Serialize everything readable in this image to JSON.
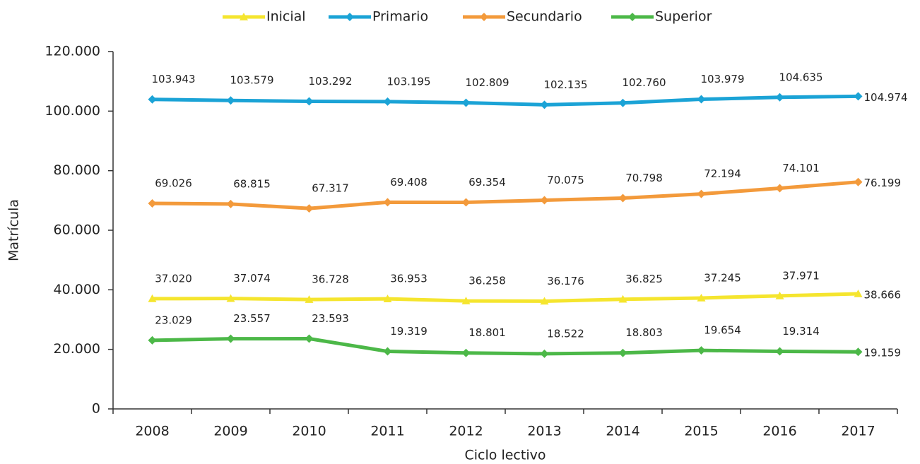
{
  "chart_data": {
    "type": "line",
    "x_label": "Ciclo lectivo",
    "y_label": "Matrícula",
    "categories": [
      "2008",
      "2009",
      "2010",
      "2011",
      "2012",
      "2013",
      "2014",
      "2015",
      "2016",
      "2017"
    ],
    "ylim": [
      0,
      120000
    ],
    "yticks": [
      0,
      {
        "value": 20000,
        "label": "20.000"
      },
      {
        "value": 40000,
        "label": "40.000"
      },
      {
        "value": 60000,
        "label": "60.000"
      },
      {
        "value": 80000,
        "label": "80.000"
      },
      {
        "value": 100000,
        "label": "100.000"
      },
      {
        "value": 120000,
        "label": "120.000"
      }
    ],
    "legend": "top",
    "series": [
      {
        "name": "Inicial",
        "color": "#f5e52e",
        "marker": "triangle",
        "values": [
          37020,
          37074,
          36728,
          36953,
          36258,
          36176,
          36825,
          37245,
          37971,
          38666
        ],
        "value_labels": [
          "37.020",
          "37.074",
          "36.728",
          "36.953",
          "36.258",
          "36.176",
          "36.825",
          "37.245",
          "37.971",
          "38.666"
        ]
      },
      {
        "name": "Primario",
        "color": "#1ba3d6",
        "marker": "diamond",
        "values": [
          103943,
          103579,
          103292,
          103195,
          102809,
          102135,
          102760,
          103979,
          104635,
          104974
        ],
        "value_labels": [
          "103.943",
          "103.579",
          "103.292",
          "103.195",
          "102.809",
          "102.135",
          "102.760",
          "103.979",
          "104.635",
          "104.974"
        ]
      },
      {
        "name": "Secundario",
        "color": "#f39a3b",
        "marker": "diamond",
        "values": [
          69026,
          68815,
          67317,
          69408,
          69354,
          70075,
          70798,
          72194,
          74101,
          76199
        ],
        "value_labels": [
          "69.026",
          "68.815",
          "67.317",
          "69.408",
          "69.354",
          "70.075",
          "70.798",
          "72.194",
          "74.101",
          "76.199"
        ]
      },
      {
        "name": "Superior",
        "color": "#4cb848",
        "marker": "diamond",
        "values": [
          23029,
          23557,
          23593,
          19319,
          18801,
          18522,
          18803,
          19654,
          19314,
          19159
        ],
        "value_labels": [
          "23.029",
          "23.557",
          "23.593",
          "19.319",
          "18.801",
          "18.522",
          "18.803",
          "19.654",
          "19.314",
          "19.159"
        ]
      }
    ]
  }
}
